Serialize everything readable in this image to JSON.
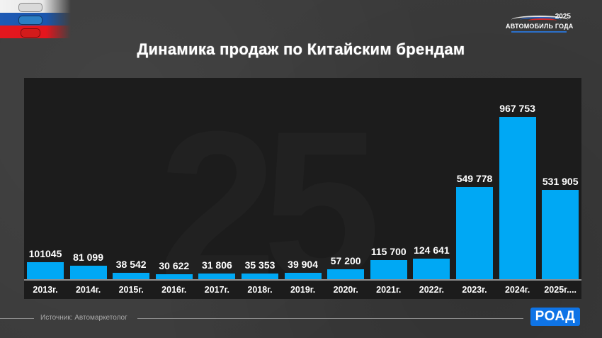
{
  "header": {
    "flag_icon": "russian-flag-with-cars",
    "award_logo": {
      "year": "2025",
      "name": "АВТОМОБИЛЬ ГОДА"
    }
  },
  "title": "Динамика продаж по Китайским брендам",
  "footer": {
    "source": "Источник: Автомаркетолог",
    "brand_logo": "РОАД"
  },
  "colors": {
    "bar": "#00a8f4",
    "panel": "#1c1c1c",
    "background": "#3b3b3b",
    "brand": "#0f74e6"
  },
  "chart_data": {
    "type": "bar",
    "title": "Динамика продаж по Китайским брендам",
    "xlabel": "",
    "ylabel": "",
    "categories": [
      "2013г.",
      "2014г.",
      "2015г.",
      "2016г.",
      "2017г.",
      "2018г.",
      "2019г.",
      "2020г.",
      "2021г.",
      "2022г.",
      "2023г.",
      "2024г.",
      "2025г...."
    ],
    "values": [
      101045,
      81099,
      38542,
      30622,
      31806,
      35353,
      39904,
      57200,
      115700,
      124641,
      549778,
      967753,
      531905
    ],
    "value_labels": [
      "101045",
      "81 099",
      "38 542",
      "30 622",
      "31 806",
      "35 353",
      "39 904",
      "57 200",
      "115 700",
      "124 641",
      "549 778",
      "967 753",
      "531 905"
    ],
    "ylim": [
      0,
      967753
    ],
    "grid": false,
    "legend": null,
    "source": "Источник: Автомаркетолог"
  }
}
